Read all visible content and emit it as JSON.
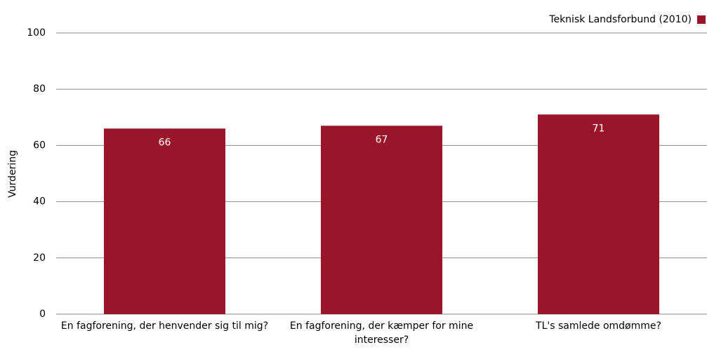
{
  "chart_data": {
    "type": "bar",
    "y_label": "Vurdering",
    "categories": [
      "En fagforening, der henvender sig til mig?",
      "En fagforening, der kæmper for mine interesser?",
      "TL's samlede omdømme?"
    ],
    "series": [
      {
        "name": "Teknisk Landsforbund (2010)",
        "color": "#99162a",
        "values": [
          66,
          67,
          71
        ]
      }
    ],
    "ylim": [
      0,
      100
    ],
    "yticks": [
      0,
      20,
      40,
      60,
      80,
      100
    ],
    "grid": true,
    "legend": "top-right"
  }
}
